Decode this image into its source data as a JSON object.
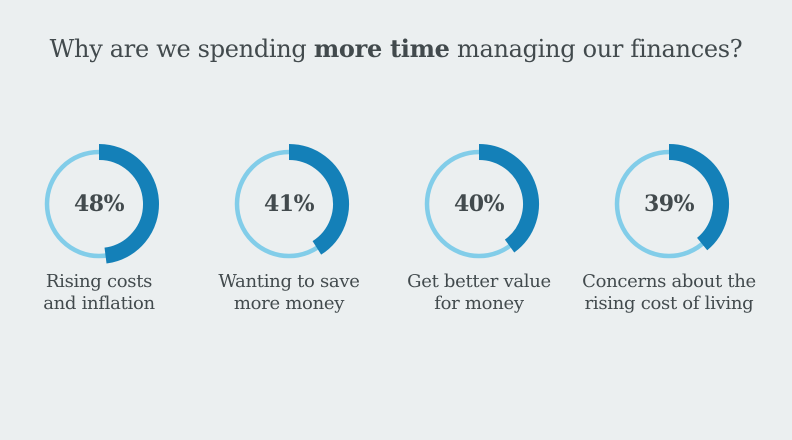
{
  "title": {
    "prefix": "Why are we spending ",
    "highlight": "more time",
    "suffix": " managing our finances?"
  },
  "colors": {
    "background": "#EBEFF0",
    "donut_fill": "#1480B8",
    "donut_track": "#82CDE9",
    "text": "#424A4D"
  },
  "chart_data": {
    "type": "donut-multiples",
    "unit": "%",
    "start_angle_deg": 0,
    "direction": "clockwise",
    "title": "Why are we spending more time managing our finances?",
    "items": [
      {
        "value": 48,
        "display": "48%",
        "label_lines": [
          "Rising costs",
          "and inflation"
        ]
      },
      {
        "value": 41,
        "display": "41%",
        "label_lines": [
          "Wanting to save",
          "more money"
        ]
      },
      {
        "value": 40,
        "display": "40%",
        "label_lines": [
          "Get better value",
          "for money"
        ]
      },
      {
        "value": 39,
        "display": "39%",
        "label_lines": [
          "Concerns about the",
          "rising cost of living"
        ]
      }
    ]
  }
}
